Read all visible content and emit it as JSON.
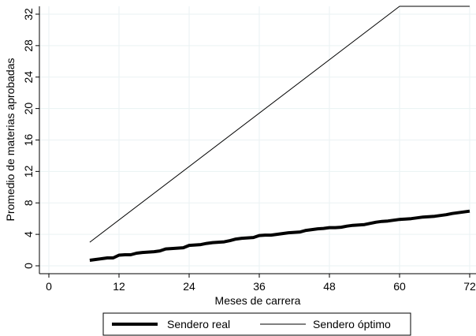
{
  "chart_data": {
    "type": "line",
    "xlabel": "Meses de carrera",
    "ylabel": "Promedio de materias aprobadas",
    "xlim": [
      0,
      72
    ],
    "ylim": [
      0,
      33
    ],
    "xticks": [
      0,
      12,
      24,
      36,
      48,
      60,
      72
    ],
    "yticks": [
      0,
      4,
      8,
      12,
      16,
      20,
      24,
      28,
      32
    ],
    "grid": true,
    "legend_position": "bottom",
    "series": [
      {
        "name": "Sendero real",
        "color": "#000000",
        "style": "thick",
        "x": [
          7,
          8,
          9,
          10,
          11,
          12,
          13,
          14,
          15,
          16,
          17,
          18,
          19,
          20,
          21,
          22,
          23,
          24,
          25,
          26,
          27,
          28,
          29,
          30,
          31,
          32,
          33,
          34,
          35,
          36,
          37,
          38,
          39,
          40,
          41,
          42,
          43,
          44,
          45,
          46,
          47,
          48,
          49,
          50,
          51,
          52,
          53,
          54,
          55,
          56,
          57,
          58,
          59,
          60,
          61,
          62,
          63,
          64,
          65,
          66,
          67,
          68,
          69,
          70,
          71,
          72
        ],
        "y": [
          0.7,
          0.8,
          0.9,
          1.0,
          1.0,
          1.35,
          1.4,
          1.4,
          1.6,
          1.7,
          1.75,
          1.8,
          1.9,
          2.15,
          2.2,
          2.25,
          2.3,
          2.6,
          2.65,
          2.7,
          2.85,
          2.95,
          3.0,
          3.05,
          3.2,
          3.4,
          3.5,
          3.55,
          3.6,
          3.85,
          3.9,
          3.9,
          4.0,
          4.1,
          4.2,
          4.25,
          4.3,
          4.5,
          4.6,
          4.7,
          4.75,
          4.85,
          4.85,
          4.9,
          5.05,
          5.15,
          5.2,
          5.25,
          5.4,
          5.55,
          5.65,
          5.7,
          5.8,
          5.9,
          5.95,
          6.0,
          6.1,
          6.2,
          6.25,
          6.3,
          6.4,
          6.5,
          6.65,
          6.75,
          6.85,
          6.95
        ]
      },
      {
        "name": "Sendero óptimo",
        "color": "#000000",
        "style": "thin",
        "x": [
          7,
          60,
          72
        ],
        "y": [
          3.0,
          33.0,
          33.0
        ]
      }
    ]
  }
}
